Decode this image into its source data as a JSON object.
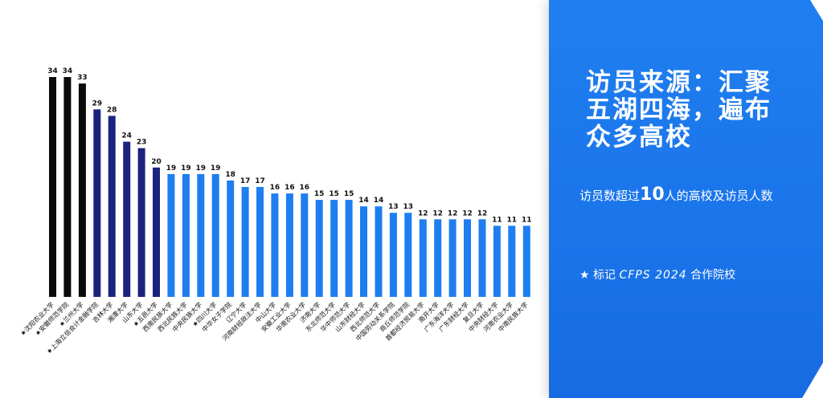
{
  "panel": {
    "title": "访员来源：汇聚五湖四海，遍布众多高校",
    "subtitle_prefix": "访员数超过",
    "subtitle_number": "10",
    "subtitle_suffix": "人的高校及访员人数",
    "note_star": "★",
    "note_label": "标记",
    "note_brand": "CFPS 2024",
    "note_suffix": "合作院校"
  },
  "chart_data": {
    "type": "bar",
    "title": "",
    "xlabel": "",
    "ylabel": "",
    "ylim": [
      0,
      34
    ],
    "grid": false,
    "legend": "none",
    "categories": [
      "★沈阳农业大学",
      "★安徽师范学院",
      "★兰州大学",
      "★上海立信会计金融学院",
      "吉林大学",
      "湘潭大学",
      "山东大学",
      "★五邑大学",
      "西南民族大学",
      "西北民族大学",
      "中央民族大学",
      "★四川大学",
      "中华女子学院",
      "辽宁大学",
      "河南财经政法大学",
      "中山大学",
      "安徽工业大学",
      "华南农业大学",
      "济南大学",
      "东北师范大学",
      "华中师范大学",
      "山东财经大学",
      "西北师范大学",
      "中国劳动关系学院",
      "商丘师范学院",
      "首都经济贸易大学",
      "南开大学",
      "广东海洋大学",
      "广东财经大学",
      "复旦大学",
      "中央财经大学",
      "河南农业大学",
      "中南民族大学"
    ],
    "values": [
      34,
      34,
      33,
      29,
      28,
      24,
      23,
      20,
      19,
      19,
      19,
      19,
      18,
      17,
      17,
      16,
      16,
      16,
      15,
      15,
      15,
      14,
      14,
      13,
      13,
      12,
      12,
      12,
      12,
      12,
      11,
      11,
      11
    ],
    "bar_colors": [
      "#0b0b0b",
      "#0b0b0b",
      "#0b0b0b",
      "#1a237e",
      "#1a237e",
      "#1a237e",
      "#1a237e",
      "#1a237e",
      "#1e7ef0",
      "#1e7ef0",
      "#1e7ef0",
      "#1e7ef0",
      "#1e7ef0",
      "#1e7ef0",
      "#1e7ef0",
      "#1e7ef0",
      "#1e7ef0",
      "#1e7ef0",
      "#1e7ef0",
      "#1e7ef0",
      "#1e7ef0",
      "#1e7ef0",
      "#1e7ef0",
      "#1e7ef0",
      "#1e7ef0",
      "#1e7ef0",
      "#1e7ef0",
      "#1e7ef0",
      "#1e7ef0",
      "#1e7ef0",
      "#1e7ef0",
      "#1e7ef0",
      "#1e7ef0"
    ]
  }
}
